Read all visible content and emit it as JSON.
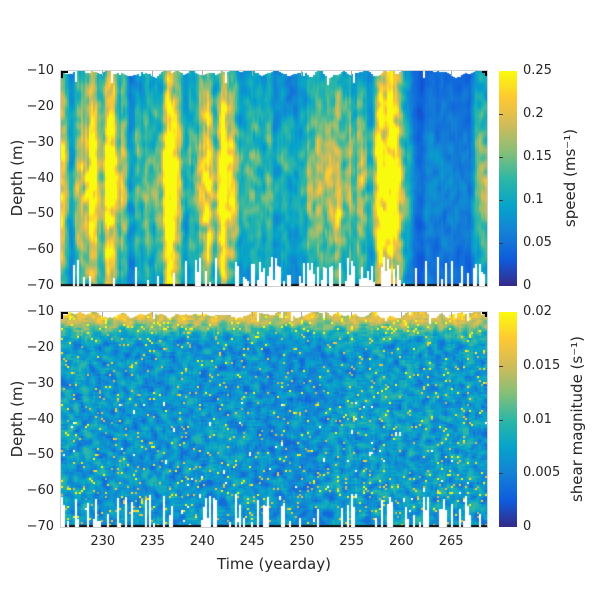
{
  "figure": {
    "background": "#ffffff",
    "text_color": "#262626",
    "axis_box_color": "#cfcfcf",
    "tick_color": "#a9a9a9",
    "corner_color": "#000000",
    "missing_data_color": "#ffffff"
  },
  "chart_data": [
    {
      "type": "heatmap",
      "panel": "top",
      "title": "",
      "xlabel": "",
      "ylabel": "Depth (m)",
      "x_range": [
        225.8,
        268.6
      ],
      "y_range": [
        -70,
        -10
      ],
      "x_ticks": [
        230,
        235,
        240,
        245,
        250,
        255,
        260,
        265
      ],
      "x_tick_labels": [
        "230",
        "235",
        "240",
        "245",
        "250",
        "255",
        "260",
        "265"
      ],
      "y_ticks": [
        -10,
        -20,
        -30,
        -40,
        -50,
        -60,
        -70
      ],
      "y_tick_labels": [
        "−10",
        "−20",
        "−30",
        "−40",
        "−50",
        "−60",
        "−70"
      ],
      "grid": false,
      "colorbar": {
        "label": "speed (ms⁻¹)",
        "range": [
          0,
          0.25
        ],
        "ticks": [
          0,
          0.05,
          0.1,
          0.15,
          0.2,
          0.25
        ],
        "tick_labels": [
          "0",
          "0.05",
          "0.1",
          "0.15",
          "0.2",
          "0.25"
        ],
        "position": "right"
      },
      "colormap": {
        "name": "parula",
        "stops": [
          {
            "p": 0.0,
            "c": [
              53,
              42,
              135
            ]
          },
          {
            "p": 0.125,
            "c": [
              15,
              92,
              221
            ]
          },
          {
            "p": 0.25,
            "c": [
              20,
              129,
              214
            ]
          },
          {
            "p": 0.375,
            "c": [
              6,
              164,
              202
            ]
          },
          {
            "p": 0.5,
            "c": [
              46,
              183,
              164
            ]
          },
          {
            "p": 0.625,
            "c": [
              135,
              191,
              119
            ]
          },
          {
            "p": 0.75,
            "c": [
              209,
              187,
              89
            ]
          },
          {
            "p": 0.875,
            "c": [
              254,
              200,
              50
            ]
          },
          {
            "p": 1.0,
            "c": [
              249,
              251,
              14
            ]
          }
        ]
      },
      "description": "Depth-time section of current speed (0-0.25 ms-1) with vertical banded structure: fast yellow events near yeardays 228-232, 236-238, 241-242, 252-253 and 258-260; a calm dark-blue period near yeardays 261-267; white pixels are missing data near the surface (~-10 to -13 m) and in ragged notches above the bottom (-70 m).",
      "time_profile": {
        "t": [
          226,
          227,
          228,
          229,
          230,
          231,
          232,
          233,
          234,
          235,
          236,
          237,
          238,
          239,
          240,
          241,
          242,
          243,
          244,
          245,
          246,
          247,
          248,
          249,
          250,
          251,
          252,
          253,
          254,
          255,
          256,
          257,
          258,
          259,
          260,
          261,
          262,
          263,
          264,
          265,
          266,
          267,
          268,
          269
        ],
        "mean_speed": [
          0.16,
          0.1,
          0.2,
          0.23,
          0.22,
          0.18,
          0.22,
          0.1,
          0.08,
          0.14,
          0.19,
          0.22,
          0.16,
          0.08,
          0.14,
          0.24,
          0.25,
          0.16,
          0.1,
          0.12,
          0.1,
          0.13,
          0.11,
          0.1,
          0.12,
          0.14,
          0.17,
          0.18,
          0.12,
          0.16,
          0.15,
          0.12,
          0.22,
          0.25,
          0.14,
          0.06,
          0.05,
          0.045,
          0.05,
          0.045,
          0.05,
          0.07,
          0.11,
          0.12
        ]
      },
      "depth_envelope": {
        "peak_depth": -41,
        "surface_factor": 0.74,
        "peak_factor": 1.17
      },
      "gen": {
        "seed": 20,
        "model": "striped",
        "gap_scale": 2.6,
        "gap_off": 0.7,
        "gap_spike_p": 0.06,
        "gap_spike": 3.5,
        "notch_min": 0.8,
        "notch_rand": 7.5,
        "notch_p_early": 0.22,
        "notch_p_late": 0.5,
        "notch_p_dark": 0.3,
        "t_late": 243,
        "t_dark0": 260.5,
        "t_dark1": 267.2
      }
    },
    {
      "type": "heatmap",
      "panel": "bottom",
      "title": "",
      "xlabel": "Time (yearday)",
      "ylabel": "Depth (m)",
      "x_range": [
        225.8,
        268.6
      ],
      "y_range": [
        -70,
        -10
      ],
      "x_ticks": [
        230,
        235,
        240,
        245,
        250,
        255,
        260,
        265
      ],
      "x_tick_labels": [
        "230",
        "235",
        "240",
        "245",
        "250",
        "255",
        "260",
        "265"
      ],
      "y_ticks": [
        -10,
        -20,
        -30,
        -40,
        -50,
        -60,
        -70
      ],
      "y_tick_labels": [
        "−10",
        "−20",
        "−30",
        "−40",
        "−50",
        "−60",
        "−70"
      ],
      "grid": false,
      "colorbar": {
        "label": "shear magnitude (s⁻¹)",
        "range": [
          0,
          0.02
        ],
        "ticks": [
          0,
          0.005,
          0.01,
          0.015,
          0.02
        ],
        "tick_labels": [
          "0",
          "0.005",
          "0.01",
          "0.015",
          "0.02"
        ],
        "position": "right"
      },
      "colormap": {
        "name": "parula",
        "stops": [
          {
            "p": 0.0,
            "c": [
              53,
              42,
              135
            ]
          },
          {
            "p": 0.125,
            "c": [
              15,
              92,
              221
            ]
          },
          {
            "p": 0.25,
            "c": [
              20,
              129,
              214
            ]
          },
          {
            "p": 0.375,
            "c": [
              6,
              164,
              202
            ]
          },
          {
            "p": 0.5,
            "c": [
              46,
              183,
              164
            ]
          },
          {
            "p": 0.625,
            "c": [
              135,
              191,
              119
            ]
          },
          {
            "p": 0.75,
            "c": [
              209,
              187,
              89
            ]
          },
          {
            "p": 0.875,
            "c": [
              254,
              200,
              50
            ]
          },
          {
            "p": 1.0,
            "c": [
              249,
              251,
              14
            ]
          }
        ]
      },
      "description": "Depth-time section of shear magnitude (0-0.02 s-1): fine-grained blue/teal speckle noise with scattered yellow patches, an elevated yellow band just below the surface (~-11 to -14 m), and white missing-data notches above the bottom.",
      "time_profile": {
        "t": [
          226,
          227,
          228,
          229,
          230,
          231,
          232,
          233,
          234,
          235,
          236,
          237,
          238,
          239,
          240,
          241,
          242,
          243,
          244,
          245,
          246,
          247,
          248,
          249,
          250,
          251,
          252,
          253,
          254,
          255,
          256,
          257,
          258,
          259,
          260,
          261,
          262,
          263,
          264,
          265,
          266,
          267,
          268,
          269
        ],
        "mean_shear": [
          0.007,
          0.007,
          0.007,
          0.007,
          0.0065,
          0.0065,
          0.0065,
          0.0065,
          0.0065,
          0.0065,
          0.0065,
          0.0065,
          0.0065,
          0.0065,
          0.0065,
          0.0065,
          0.0065,
          0.0065,
          0.0065,
          0.0065,
          0.006,
          0.006,
          0.006,
          0.006,
          0.006,
          0.006,
          0.006,
          0.0065,
          0.0065,
          0.007,
          0.007,
          0.007,
          0.007,
          0.007,
          0.007,
          0.007,
          0.007,
          0.007,
          0.007,
          0.007,
          0.007,
          0.007,
          0.0065,
          0.0065
        ]
      },
      "surface_band": {
        "center_depth": -11,
        "amplitude": 0.009
      },
      "gen": {
        "seed": 77,
        "model": "speckle",
        "gap_scale": 2.2,
        "gap_off": 0.5,
        "gap_spike_p": 0.05,
        "gap_spike": 2.5,
        "notch_min": 0.8,
        "notch_rand": 8.5,
        "notch_p": 0.38,
        "speck_p": 0.035,
        "speck_deep": 0.02,
        "speck_surf": 0.025,
        "interior_speck_p": 0.006
      }
    }
  ]
}
